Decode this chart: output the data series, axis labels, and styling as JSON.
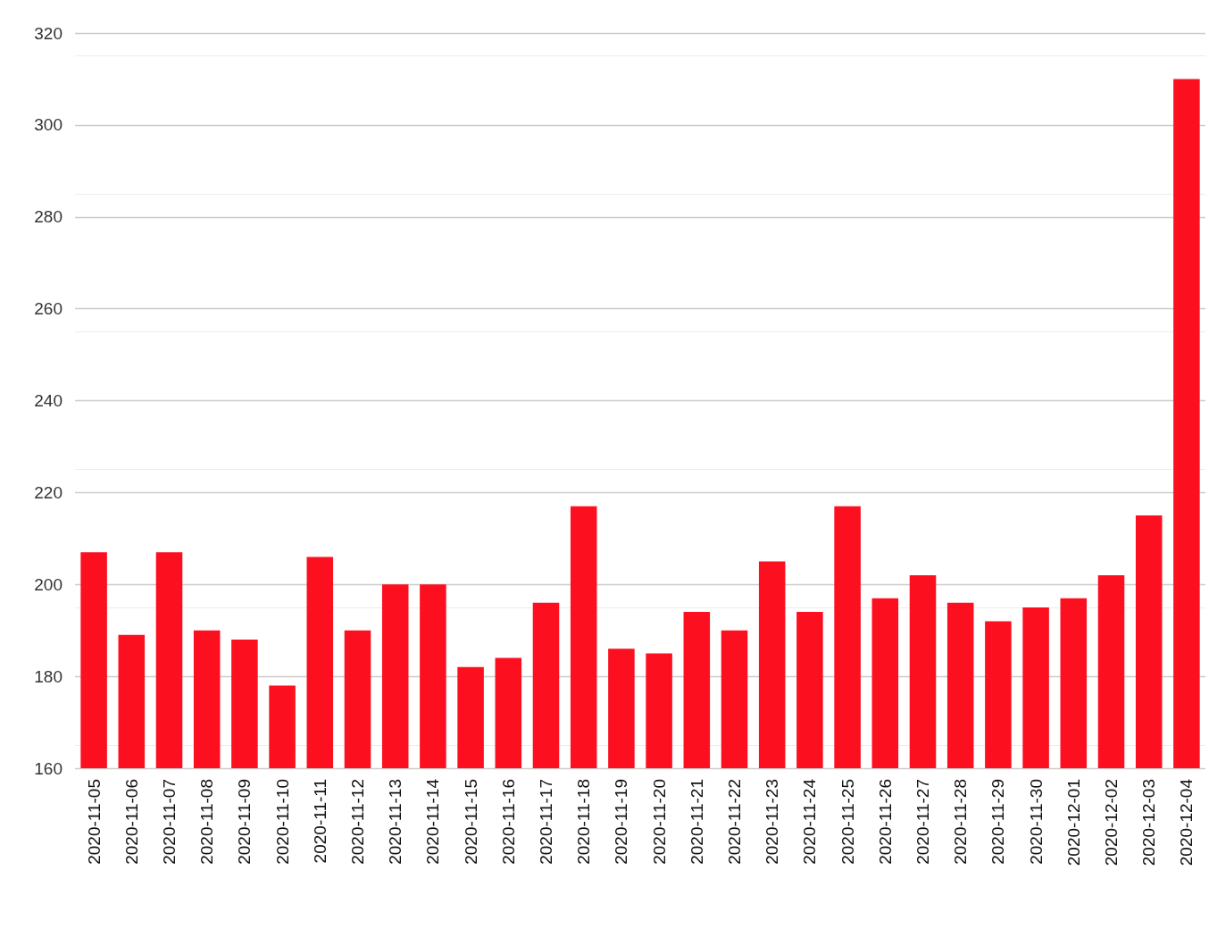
{
  "chart_data": {
    "type": "bar",
    "categories": [
      "2020-11-05",
      "2020-11-06",
      "2020-11-07",
      "2020-11-08",
      "2020-11-09",
      "2020-11-10",
      "2020-11-11",
      "2020-11-12",
      "2020-11-13",
      "2020-11-14",
      "2020-11-15",
      "2020-11-16",
      "2020-11-17",
      "2020-11-18",
      "2020-11-19",
      "2020-11-20",
      "2020-11-21",
      "2020-11-22",
      "2020-11-23",
      "2020-11-24",
      "2020-11-25",
      "2020-11-26",
      "2020-11-27",
      "2020-11-28",
      "2020-11-29",
      "2020-11-30",
      "2020-12-01",
      "2020-12-02",
      "2020-12-03",
      "2020-12-04"
    ],
    "values": [
      207,
      189,
      207,
      190,
      188,
      178,
      206,
      190,
      200,
      200,
      182,
      184,
      196,
      217,
      186,
      185,
      194,
      190,
      205,
      194,
      217,
      197,
      202,
      196,
      192,
      195,
      197,
      202,
      215,
      310
    ],
    "color": "#fc0f1f",
    "ylim": [
      160,
      320
    ],
    "yticks": [
      160,
      180,
      200,
      220,
      240,
      260,
      280,
      300,
      320
    ],
    "grid": "y"
  }
}
